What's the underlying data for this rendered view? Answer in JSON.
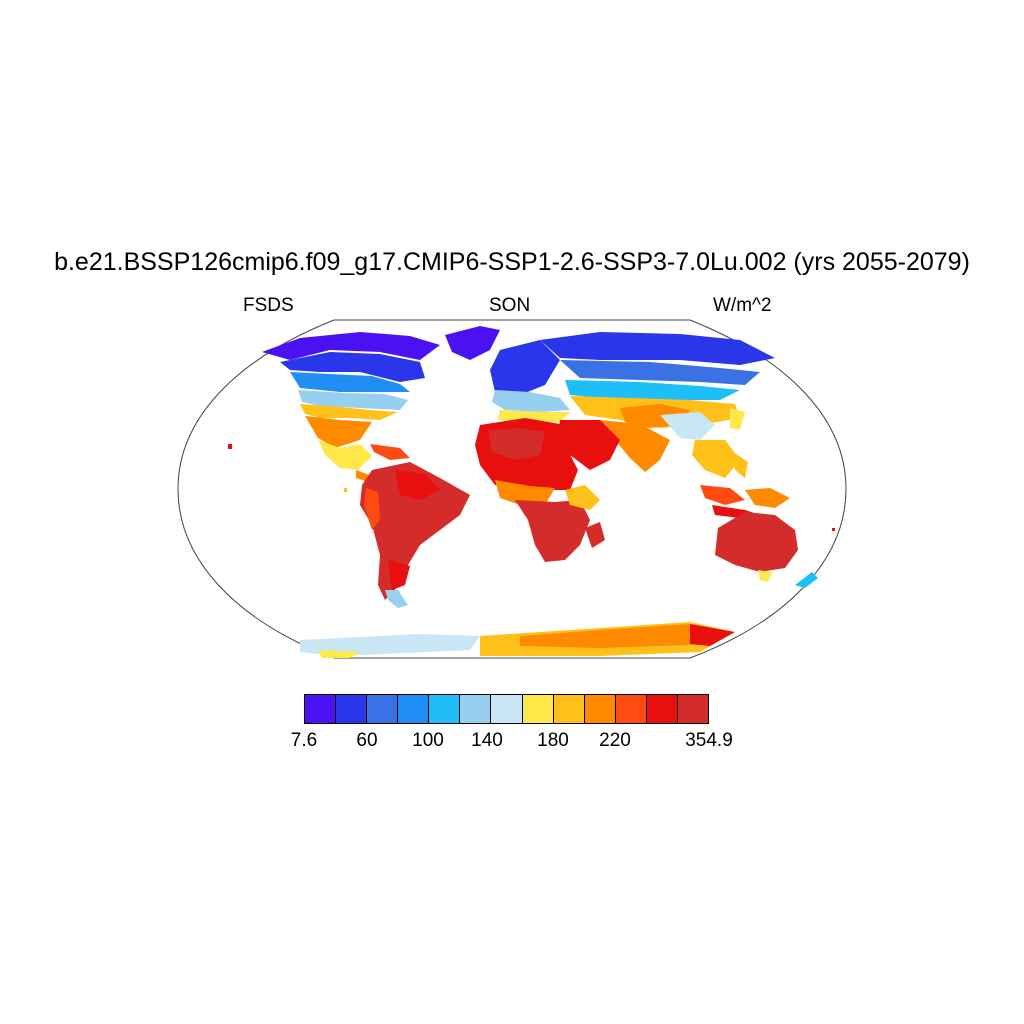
{
  "map": {
    "title": "b.e21.BSSP126cmip6.f09_g17.CMIP6-SSP1-2.6-SSP3-7.0Lu.002 (yrs 2055-2079)",
    "variable": "FSDS",
    "season": "SON",
    "units": "W/m^2",
    "projection": "Robinson",
    "colorbar": {
      "colors": [
        "#4a12f2",
        "#2a36ea",
        "#3a72e6",
        "#1f8ff5",
        "#1ebef9",
        "#96cff0",
        "#c9e6f4",
        "#ffe84a",
        "#ffc01a",
        "#ff8a00",
        "#ff4a12",
        "#e80f0f",
        "#d42b2b"
      ],
      "labels": [
        "7.6",
        "60",
        "100",
        "140",
        "180",
        "220",
        "354.9"
      ]
    }
  }
}
